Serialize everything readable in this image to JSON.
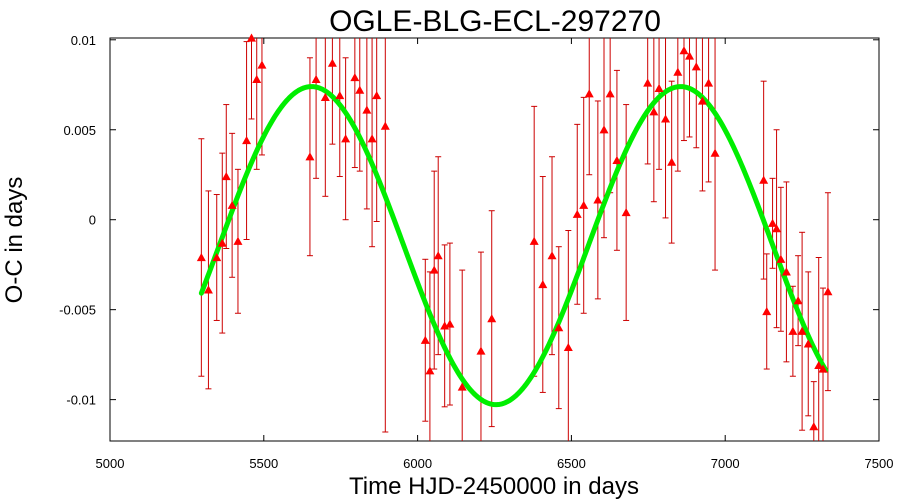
{
  "chart_data": {
    "type": "scatter",
    "title": "OGLE-BLG-ECL-297270",
    "xlabel": "Time HJD-2450000 in days",
    "ylabel": "O-C in days",
    "xlim": [
      5000,
      7500
    ],
    "ylim": [
      -0.0123,
      0.0101
    ],
    "xticks": [
      5000,
      5500,
      6000,
      6500,
      7000,
      7500
    ],
    "xtick_labels": [
      "5000",
      "5500",
      "6000",
      "6500",
      "7000",
      "7500"
    ],
    "yticks": [
      0.01,
      0.005,
      0,
      -0.005,
      -0.01
    ],
    "ytick_labels": [
      "0.01",
      "0.005",
      "0",
      "-0.005",
      "-0.01"
    ],
    "grid": false,
    "colors": {
      "points": "#ff0000",
      "errorbars": "#cc0000",
      "fit": "#00ee00"
    },
    "series": [
      {
        "type": "scatter",
        "marker": "triangle",
        "x": [
          5297,
          5320,
          5347,
          5365,
          5378,
          5397,
          5416,
          5444,
          5460,
          5477,
          5494,
          5650,
          5670,
          5700,
          5723,
          5747,
          5766,
          5796,
          5812,
          5835,
          5852,
          5867,
          5895,
          6025,
          6040,
          6054,
          6067,
          6088,
          6105,
          6145,
          6206,
          6241,
          6379,
          6407,
          6437,
          6459,
          6490,
          6519,
          6540,
          6558,
          6586,
          6606,
          6626,
          6648,
          6678,
          6748,
          6768,
          6785,
          6806,
          6826,
          6846,
          6866,
          6884,
          6906,
          6926,
          6946,
          6967,
          7125,
          7135,
          7154,
          7167,
          7181,
          7199,
          7220,
          7237,
          7250,
          7270,
          7288,
          7304,
          7318,
          7334
        ],
        "y": [
          -0.0021,
          -0.0039,
          -0.0021,
          -0.0013,
          0.0024,
          0.0008,
          -0.0012,
          0.0044,
          0.0101,
          0.0078,
          0.0086,
          0.0035,
          0.0078,
          0.0068,
          0.0087,
          0.0069,
          0.0045,
          0.0079,
          0.0072,
          0.0061,
          0.0045,
          0.0069,
          0.0052,
          -0.0067,
          -0.0084,
          -0.0028,
          -0.002,
          -0.0059,
          -0.0058,
          -0.0093,
          -0.0073,
          -0.0055,
          -0.0012,
          -0.0036,
          -0.002,
          -0.006,
          -0.0071,
          0.0003,
          0.0008,
          0.007,
          0.0011,
          0.005,
          0.007,
          0.0033,
          0.0004,
          0.0076,
          0.006,
          0.0073,
          0.0056,
          0.0032,
          0.0082,
          0.0094,
          0.0091,
          0.0085,
          0.0066,
          0.0076,
          0.0037,
          0.0022,
          -0.0051,
          -0.0002,
          -0.0005,
          -0.0022,
          -0.0029,
          -0.0062,
          -0.0045,
          -0.0062,
          -0.0069,
          -0.0115,
          -0.0081,
          -0.0083,
          -0.004
        ],
        "yerr": [
          0.0066,
          0.0055,
          0.0035,
          0.005,
          0.004,
          0.004,
          0.004,
          0.0055,
          0.0045,
          0.005,
          0.005,
          0.0055,
          0.0055,
          0.0055,
          0.0045,
          0.0045,
          0.0045,
          0.005,
          0.0045,
          0.0055,
          0.006,
          0.007,
          0.017,
          0.0045,
          0.0055,
          0.0055,
          0.0055,
          0.0045,
          0.0045,
          0.0065,
          0.0055,
          0.006,
          0.0075,
          0.006,
          0.0055,
          0.0045,
          0.0065,
          0.005,
          0.006,
          0.0045,
          0.0055,
          0.006,
          0.0055,
          0.005,
          0.006,
          0.0045,
          0.005,
          0.0045,
          0.0055,
          0.0045,
          0.0055,
          0.005,
          0.0045,
          0.0045,
          0.005,
          0.0055,
          0.0065,
          0.0055,
          0.0032,
          0.0025,
          0.0055,
          0.004,
          0.005,
          0.0025,
          0.0025,
          0.0055,
          0.004,
          0.0025,
          0.006,
          0.0045,
          0.0055
        ]
      },
      {
        "type": "line",
        "fit": {
          "model": "sine",
          "amplitude": 0.00884,
          "offset": -0.00144,
          "period": 1200,
          "peak_x": 5655,
          "x_start": 5297,
          "x_end": 7330
        }
      }
    ]
  }
}
